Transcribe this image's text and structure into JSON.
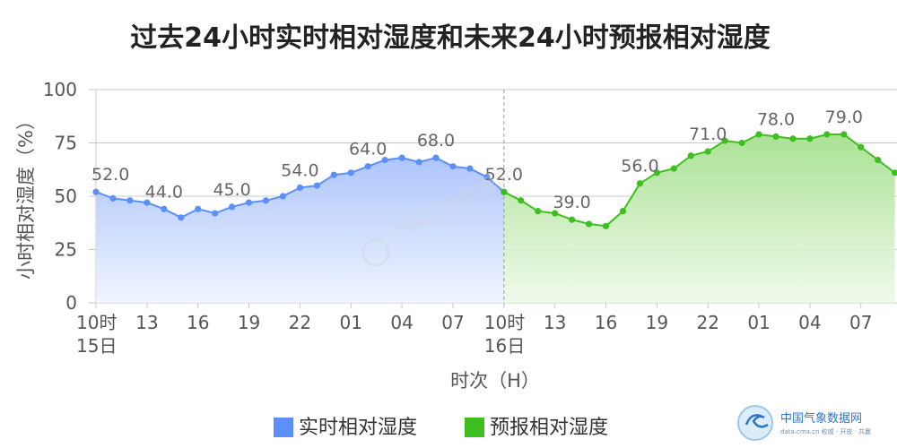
{
  "chart_data": {
    "type": "area",
    "title": "过去24小时实时相对湿度和未来24小时预报相对湿度",
    "xlabel": "时次（H）",
    "ylabel": "小时相对湿度（%）",
    "ylim": [
      0,
      100
    ],
    "yticks": [
      "0",
      "25",
      "50",
      "75",
      "100"
    ],
    "grid": true,
    "legend_position": "bottom",
    "x_hours": [
      "10",
      "11",
      "12",
      "13",
      "14",
      "15",
      "16",
      "17",
      "18",
      "19",
      "20",
      "21",
      "22",
      "23",
      "00",
      "01",
      "02",
      "03",
      "04",
      "05",
      "06",
      "07",
      "08",
      "09",
      "10",
      "11",
      "12",
      "13",
      "14",
      "15",
      "16",
      "17",
      "18",
      "19",
      "20",
      "21",
      "22",
      "23",
      "00",
      "01",
      "02",
      "03",
      "04",
      "05",
      "06",
      "07",
      "08",
      "09"
    ],
    "x_tick_labels": [
      {
        "index": 0,
        "line1": "10时",
        "line2": "15日"
      },
      {
        "index": 3,
        "line1": "13",
        "line2": ""
      },
      {
        "index": 6,
        "line1": "16",
        "line2": ""
      },
      {
        "index": 9,
        "line1": "19",
        "line2": ""
      },
      {
        "index": 12,
        "line1": "22",
        "line2": ""
      },
      {
        "index": 15,
        "line1": "01",
        "line2": ""
      },
      {
        "index": 18,
        "line1": "04",
        "line2": ""
      },
      {
        "index": 21,
        "line1": "07",
        "line2": ""
      },
      {
        "index": 24,
        "line1": "10时",
        "line2": "16日"
      },
      {
        "index": 27,
        "line1": "13",
        "line2": ""
      },
      {
        "index": 30,
        "line1": "16",
        "line2": ""
      },
      {
        "index": 33,
        "line1": "19",
        "line2": ""
      },
      {
        "index": 36,
        "line1": "22",
        "line2": ""
      },
      {
        "index": 39,
        "line1": "01",
        "line2": ""
      },
      {
        "index": 42,
        "line1": "04",
        "line2": ""
      },
      {
        "index": 45,
        "line1": "07",
        "line2": ""
      }
    ],
    "divider_index": 24,
    "series": [
      {
        "name": "实时相对湿度",
        "color": "#5b8ff9",
        "fill_top": "#a9c2fb",
        "fill_bottom": "#eef3fe",
        "start_index": 0,
        "values": [
          52,
          49,
          48,
          47,
          44,
          40,
          44,
          42,
          45,
          47,
          48,
          50,
          54,
          55,
          60,
          61,
          64,
          67,
          68,
          66,
          68,
          64,
          63,
          59,
          52
        ],
        "labeled": [
          {
            "index": 0,
            "text": "52.0"
          },
          {
            "index": 4,
            "text": "44.0"
          },
          {
            "index": 8,
            "text": "45.0"
          },
          {
            "index": 12,
            "text": "54.0"
          },
          {
            "index": 16,
            "text": "64.0"
          },
          {
            "index": 20,
            "text": "68.0"
          },
          {
            "index": 24,
            "text": "52.0"
          }
        ]
      },
      {
        "name": "预报相对湿度",
        "color": "#3fbf1f",
        "fill_top": "#a6e08f",
        "fill_bottom": "#eef9e9",
        "start_index": 24,
        "values": [
          52,
          48,
          43,
          42,
          39,
          37,
          36,
          43,
          56,
          61,
          63,
          69,
          71,
          76,
          75,
          79,
          78,
          77,
          77,
          79,
          79,
          73,
          67,
          61
        ],
        "labeled": [
          {
            "index": 28,
            "text": "39.0"
          },
          {
            "index": 32,
            "text": "56.0"
          },
          {
            "index": 36,
            "text": "71.0"
          },
          {
            "index": 40,
            "text": "78.0"
          },
          {
            "index": 44,
            "text": "79.0"
          }
        ]
      }
    ]
  },
  "legend": [
    {
      "label": "实时相对湿度",
      "color": "#5b8ff9"
    },
    {
      "label": "预报相对湿度",
      "color": "#3fbf1f"
    }
  ],
  "watermark": {
    "center_text": "中国气象数据网",
    "logo_text": "中国气象数据网",
    "logo_sub": "data.cma.cn 权威 · 开放 · 共赢"
  }
}
